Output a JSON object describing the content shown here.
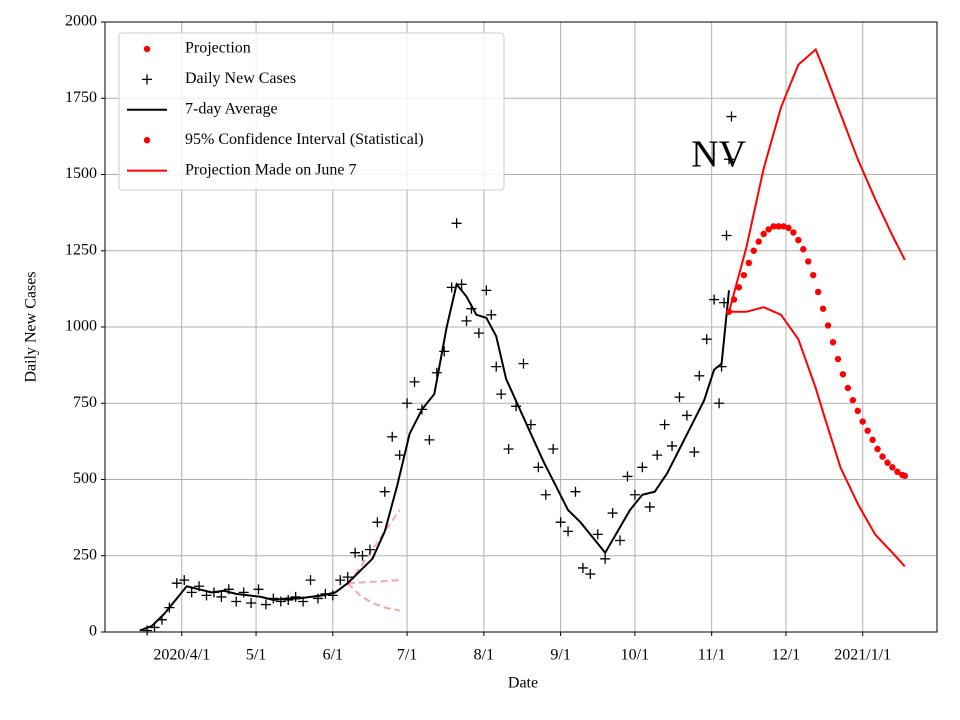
{
  "chart_data": {
    "type": "line",
    "annotation": "NV",
    "xlabel": "Date",
    "ylabel": "Daily New Cases",
    "grid": true,
    "legend": "upper left",
    "xlim": [
      "2020-03-01",
      "2021-01-31"
    ],
    "xticks": [
      {
        "value": "2020-04-01",
        "label": "2020/4/1"
      },
      {
        "value": "2020-05-01",
        "label": "5/1"
      },
      {
        "value": "2020-06-01",
        "label": "6/1"
      },
      {
        "value": "2020-07-01",
        "label": "7/1"
      },
      {
        "value": "2020-08-01",
        "label": "8/1"
      },
      {
        "value": "2020-09-01",
        "label": "9/1"
      },
      {
        "value": "2020-10-01",
        "label": "10/1"
      },
      {
        "value": "2020-11-01",
        "label": "11/1"
      },
      {
        "value": "2020-12-01",
        "label": "12/1"
      },
      {
        "value": "2021-01-01",
        "label": "2021/1/1"
      }
    ],
    "ylim": [
      0,
      2000
    ],
    "yticks": [
      0,
      250,
      500,
      750,
      1000,
      1250,
      1500,
      1750,
      2000
    ],
    "series": [
      {
        "name": "Projection",
        "color": "#ff0000",
        "legend_marker": "dot",
        "style": "dot",
        "x": [
          "2020-11-08",
          "2020-11-10",
          "2020-11-12",
          "2020-11-14",
          "2020-11-16",
          "2020-11-18",
          "2020-11-20",
          "2020-11-22",
          "2020-11-24",
          "2020-11-26",
          "2020-11-28",
          "2020-11-30",
          "2020-12-02",
          "2020-12-04",
          "2020-12-06",
          "2020-12-08",
          "2020-12-10",
          "2020-12-12",
          "2020-12-14",
          "2020-12-16",
          "2020-12-18",
          "2020-12-20",
          "2020-12-22",
          "2020-12-24",
          "2020-12-26",
          "2020-12-28",
          "2020-12-30",
          "2021-01-01",
          "2021-01-03",
          "2021-01-05",
          "2021-01-07",
          "2021-01-09",
          "2021-01-11",
          "2021-01-13",
          "2021-01-15",
          "2021-01-17",
          "2021-01-18"
        ],
        "values": [
          1050,
          1090,
          1130,
          1170,
          1210,
          1250,
          1280,
          1305,
          1320,
          1330,
          1330,
          1330,
          1325,
          1310,
          1285,
          1255,
          1215,
          1170,
          1115,
          1060,
          1005,
          950,
          895,
          845,
          800,
          760,
          725,
          690,
          660,
          630,
          600,
          575,
          555,
          540,
          525,
          515,
          512
        ]
      },
      {
        "name": "Daily New Cases",
        "color": "#000000",
        "legend_marker": "plus",
        "style": "plus",
        "x": [
          "2020-03-18",
          "2020-03-21",
          "2020-03-24",
          "2020-03-27",
          "2020-03-30",
          "2020-04-02",
          "2020-04-05",
          "2020-04-08",
          "2020-04-11",
          "2020-04-14",
          "2020-04-17",
          "2020-04-20",
          "2020-04-23",
          "2020-04-26",
          "2020-04-29",
          "2020-05-02",
          "2020-05-05",
          "2020-05-08",
          "2020-05-11",
          "2020-05-14",
          "2020-05-17",
          "2020-05-20",
          "2020-05-23",
          "2020-05-26",
          "2020-05-29",
          "2020-06-01",
          "2020-06-04",
          "2020-06-07",
          "2020-06-10",
          "2020-06-13",
          "2020-06-16",
          "2020-06-19",
          "2020-06-22",
          "2020-06-25",
          "2020-06-28",
          "2020-07-01",
          "2020-07-04",
          "2020-07-07",
          "2020-07-10",
          "2020-07-13",
          "2020-07-16",
          "2020-07-19",
          "2020-07-21",
          "2020-07-23",
          "2020-07-25",
          "2020-07-27",
          "2020-07-30",
          "2020-08-02",
          "2020-08-04",
          "2020-08-06",
          "2020-08-08",
          "2020-08-11",
          "2020-08-14",
          "2020-08-17",
          "2020-08-20",
          "2020-08-23",
          "2020-08-26",
          "2020-08-29",
          "2020-09-01",
          "2020-09-04",
          "2020-09-07",
          "2020-09-10",
          "2020-09-13",
          "2020-09-16",
          "2020-09-19",
          "2020-09-22",
          "2020-09-25",
          "2020-09-28",
          "2020-10-01",
          "2020-10-04",
          "2020-10-07",
          "2020-10-10",
          "2020-10-13",
          "2020-10-16",
          "2020-10-19",
          "2020-10-22",
          "2020-10-25",
          "2020-10-27",
          "2020-10-30",
          "2020-11-02",
          "2020-11-04",
          "2020-11-05",
          "2020-11-06",
          "2020-11-07",
          "2020-11-08",
          "2020-11-09"
        ],
        "values": [
          5,
          15,
          40,
          80,
          160,
          170,
          130,
          150,
          120,
          130,
          115,
          140,
          100,
          130,
          95,
          140,
          90,
          110,
          100,
          105,
          115,
          100,
          170,
          110,
          125,
          120,
          170,
          180,
          260,
          250,
          270,
          360,
          460,
          640,
          580,
          750,
          820,
          730,
          630,
          850,
          920,
          1130,
          1340,
          1140,
          1020,
          1060,
          980,
          1120,
          1040,
          870,
          780,
          600,
          740,
          880,
          680,
          540,
          450,
          600,
          360,
          330,
          460,
          210,
          190,
          320,
          240,
          390,
          300,
          510,
          450,
          540,
          410,
          580,
          680,
          610,
          770,
          710,
          590,
          840,
          960,
          1090,
          750,
          870,
          1080,
          1300,
          1550,
          1690
        ]
      },
      {
        "name": "7-day Average",
        "color": "#000000",
        "legend_marker": "line",
        "style": "line",
        "x": [
          "2020-03-15",
          "2020-03-20",
          "2020-03-25",
          "2020-03-30",
          "2020-04-03",
          "2020-04-08",
          "2020-04-13",
          "2020-04-18",
          "2020-04-23",
          "2020-04-28",
          "2020-05-03",
          "2020-05-08",
          "2020-05-13",
          "2020-05-18",
          "2020-05-23",
          "2020-05-28",
          "2020-06-02",
          "2020-06-07",
          "2020-06-12",
          "2020-06-17",
          "2020-06-22",
          "2020-06-27",
          "2020-07-02",
          "2020-07-07",
          "2020-07-12",
          "2020-07-17",
          "2020-07-21",
          "2020-07-25",
          "2020-07-29",
          "2020-08-02",
          "2020-08-06",
          "2020-08-10",
          "2020-08-15",
          "2020-08-20",
          "2020-08-25",
          "2020-08-30",
          "2020-09-04",
          "2020-09-09",
          "2020-09-14",
          "2020-09-19",
          "2020-09-24",
          "2020-09-29",
          "2020-10-04",
          "2020-10-09",
          "2020-10-14",
          "2020-10-19",
          "2020-10-24",
          "2020-10-29",
          "2020-11-02",
          "2020-11-05",
          "2020-11-08"
        ],
        "values": [
          5,
          20,
          60,
          110,
          150,
          140,
          130,
          135,
          125,
          120,
          115,
          105,
          110,
          110,
          115,
          120,
          130,
          160,
          200,
          240,
          330,
          480,
          650,
          730,
          780,
          1000,
          1140,
          1100,
          1040,
          1030,
          970,
          830,
          740,
          650,
          560,
          480,
          400,
          360,
          310,
          260,
          330,
          400,
          450,
          460,
          520,
          600,
          680,
          760,
          860,
          880,
          1120
        ]
      },
      {
        "name": "95% Confidence Interval (Statistical)",
        "color": "#ff0000",
        "legend_marker": "dot",
        "style": "band-lines",
        "x": [
          "2020-11-08",
          "2020-11-15",
          "2020-11-22",
          "2020-11-29",
          "2020-12-06",
          "2020-12-13",
          "2020-12-16",
          "2020-12-23",
          "2020-12-30",
          "2021-01-06",
          "2021-01-13",
          "2021-01-18"
        ],
        "upper": [
          1050,
          1260,
          1520,
          1720,
          1860,
          1910,
          1850,
          1700,
          1550,
          1420,
          1300,
          1220
        ],
        "lower": [
          1050,
          1050,
          1065,
          1040,
          960,
          800,
          720,
          540,
          420,
          320,
          260,
          215
        ]
      },
      {
        "name": "Projection Made on June 7",
        "color": "#ff0000",
        "draw_color": "#f5a8a8",
        "legend_marker": "line",
        "style": "dashed-fan",
        "x": [
          "2020-06-07",
          "2020-06-12",
          "2020-06-17",
          "2020-06-22",
          "2020-06-28"
        ],
        "upper": [
          160,
          210,
          270,
          330,
          400
        ],
        "values": [
          160,
          162,
          165,
          167,
          170
        ],
        "lower": [
          160,
          120,
          95,
          80,
          70
        ]
      }
    ]
  }
}
